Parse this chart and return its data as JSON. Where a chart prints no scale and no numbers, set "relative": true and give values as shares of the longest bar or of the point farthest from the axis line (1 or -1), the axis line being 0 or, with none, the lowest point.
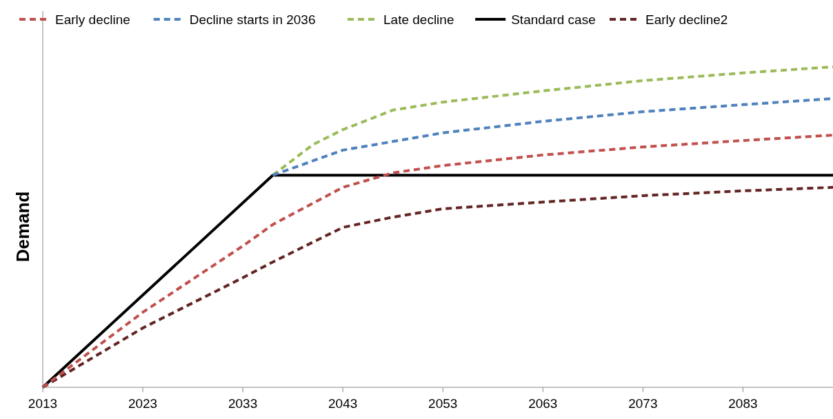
{
  "chart_data": {
    "type": "line",
    "ylabel": "Demand",
    "relative": true,
    "xlim": [
      2013,
      2092
    ],
    "xticks": [
      2013,
      2023,
      2033,
      2043,
      2053,
      2063,
      2073,
      2083
    ],
    "legend": "top",
    "series": [
      {
        "name": "Early decline",
        "color": "#c0504d",
        "line_style": "dashed",
        "x": [
          2013,
          2023,
          2033,
          2036,
          2043,
          2048,
          2053,
          2063,
          2073,
          2083,
          2092
        ],
        "values": [
          0,
          0.234,
          0.441,
          0.508,
          0.624,
          0.669,
          0.692,
          0.725,
          0.75,
          0.77,
          0.787
        ]
      },
      {
        "name": "Decline starts in 2036",
        "color": "#4f81bd",
        "line_style": "dashed",
        "x": [
          2036,
          2043,
          2053,
          2063,
          2073,
          2083,
          2092
        ],
        "values": [
          0.662,
          0.74,
          0.794,
          0.83,
          0.86,
          0.882,
          0.901
        ]
      },
      {
        "name": "Late decline",
        "color": "#9bbb59",
        "line_style": "dashed",
        "x": [
          2036,
          2040,
          2043,
          2048,
          2053,
          2063,
          2073,
          2083,
          2092
        ],
        "values": [
          0.662,
          0.757,
          0.804,
          0.865,
          0.89,
          0.925,
          0.957,
          0.981,
          1
        ]
      },
      {
        "name": "Standard case",
        "color": "#000000",
        "line_style": "solid",
        "x": [
          2013,
          2036,
          2092
        ],
        "values": [
          0,
          0.662,
          0.662
        ]
      },
      {
        "name": "Early decline2",
        "color": "#632523",
        "line_style": "dashed",
        "x": [
          2013,
          2023,
          2033,
          2036,
          2043,
          2048,
          2053,
          2063,
          2073,
          2083,
          2092
        ],
        "values": [
          0,
          0.185,
          0.342,
          0.391,
          0.499,
          0.531,
          0.557,
          0.578,
          0.598,
          0.613,
          0.624
        ]
      }
    ]
  }
}
